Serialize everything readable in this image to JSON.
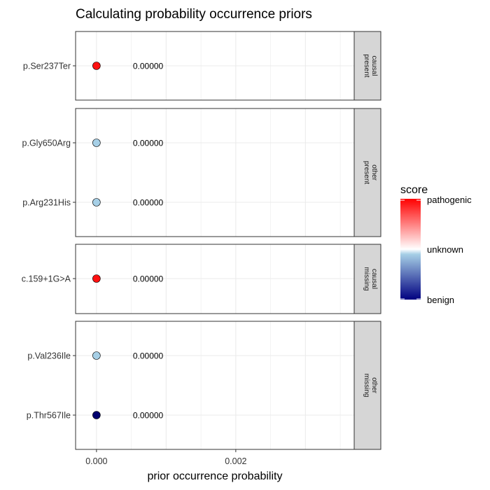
{
  "chart_data": {
    "type": "scatter",
    "title": "Calculating probability occurrence priors",
    "xlabel": "prior occurrence probability",
    "ylabel": "",
    "xlim": [
      -0.0003,
      0.0037
    ],
    "x_ticks": [
      {
        "value": 0.0,
        "label": "0.000"
      },
      {
        "value": 0.002,
        "label": "0.002"
      }
    ],
    "grid": true,
    "facets": [
      {
        "strip": [
          "present",
          "causal"
        ],
        "points": [
          {
            "variant": "p.Ser237Ter",
            "x": 0.0,
            "label": "0.00000",
            "score": "pathogenic",
            "color": "#ff1111"
          }
        ]
      },
      {
        "strip": [
          "present",
          "other"
        ],
        "points": [
          {
            "variant": "p.Gly650Arg",
            "x": 0.0,
            "label": "0.00000",
            "score": "unknown",
            "color": "#a6cfe6"
          },
          {
            "variant": "p.Arg231His",
            "x": 0.0,
            "label": "0.00000",
            "score": "unknown",
            "color": "#a6cfe6"
          }
        ]
      },
      {
        "strip": [
          "missing",
          "causal"
        ],
        "points": [
          {
            "variant": "c.159+1G>A",
            "x": 0.0,
            "label": "0.00000",
            "score": "pathogenic",
            "color": "#ff1111"
          }
        ]
      },
      {
        "strip": [
          "missing",
          "other"
        ],
        "points": [
          {
            "variant": "p.Val236Ile",
            "x": 0.0,
            "label": "0.00000",
            "score": "unknown",
            "color": "#a6cfe6"
          },
          {
            "variant": "p.Thr567Ile",
            "x": 0.0,
            "label": "0.00000",
            "score": "benign",
            "color": "#00006e"
          }
        ]
      }
    ],
    "legend": {
      "title": "score",
      "placement": "right",
      "labels": [
        "pathogenic",
        "unknown",
        "benign"
      ],
      "gradient": [
        "#ff0000",
        "#ffffff",
        "#a6cfe6",
        "#000080"
      ]
    }
  }
}
